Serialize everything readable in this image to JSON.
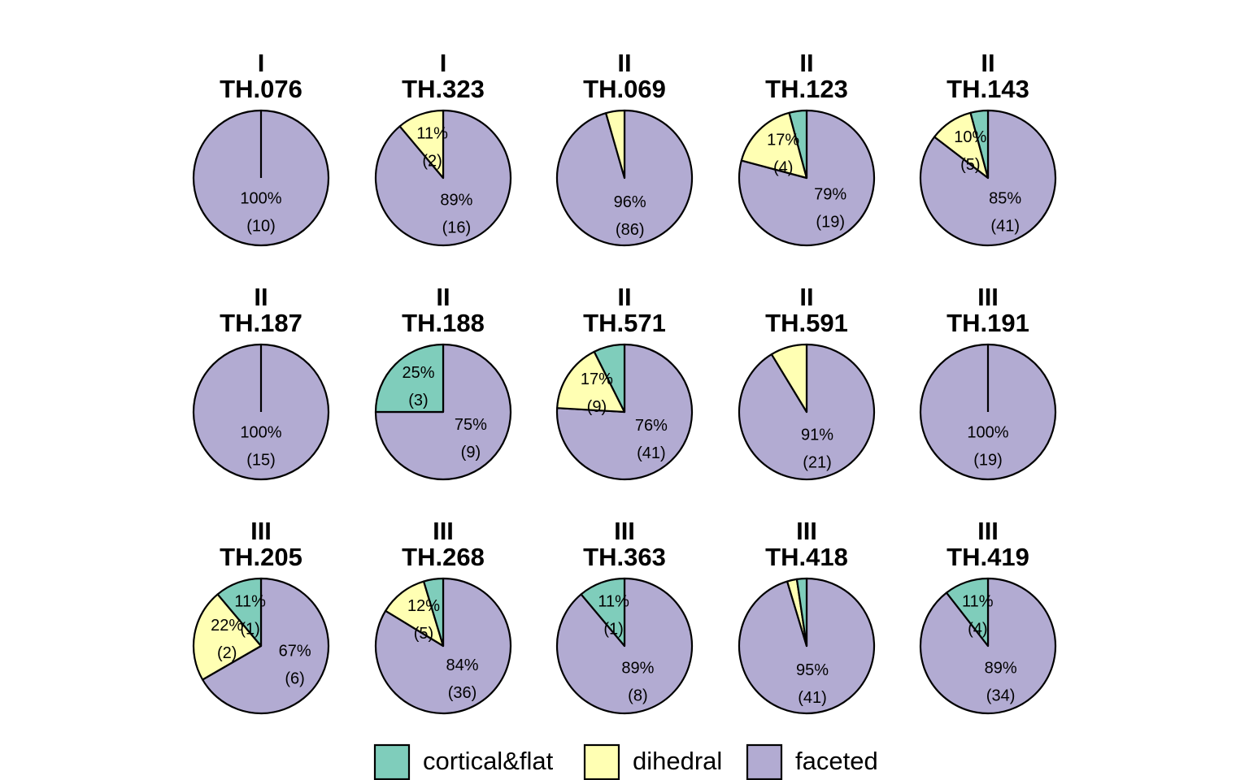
{
  "chart_data": {
    "type": "pie",
    "layout": "small-multiples-grid",
    "grid": false,
    "legend_placement": "bottom",
    "categories": [
      "cortical&flat",
      "dihedral",
      "faceted"
    ],
    "colors": {
      "cortical&flat": "#7FCDBB",
      "dihedral": "#FFFFB3",
      "faceted": "#B2ABD2"
    },
    "outline_color": "#000000",
    "pies": [
      {
        "group": "I",
        "id": "TH.076",
        "counts": [
          0,
          0,
          10
        ],
        "labels": [
          null,
          null,
          {
            "pct": "100%",
            "n": "(10)"
          }
        ]
      },
      {
        "group": "I",
        "id": "TH.323",
        "counts": [
          0,
          2,
          16
        ],
        "labels": [
          null,
          {
            "pct": "11%",
            "n": "(2)"
          },
          {
            "pct": "89%",
            "n": "(16)"
          }
        ]
      },
      {
        "group": "II",
        "id": "TH.069",
        "counts": [
          0,
          4,
          86
        ],
        "labels": [
          null,
          null,
          {
            "pct": "96%",
            "n": "(86)"
          }
        ]
      },
      {
        "group": "II",
        "id": "TH.123",
        "counts": [
          1,
          4,
          19
        ],
        "labels": [
          null,
          {
            "pct": "17%",
            "n": "(4)"
          },
          {
            "pct": "79%",
            "n": "(19)"
          }
        ]
      },
      {
        "group": "II",
        "id": "TH.143",
        "counts": [
          2,
          5,
          41
        ],
        "labels": [
          null,
          {
            "pct": "10%",
            "n": "(5)"
          },
          {
            "pct": "85%",
            "n": "(41)"
          }
        ]
      },
      {
        "group": "II",
        "id": "TH.187",
        "counts": [
          0,
          0,
          15
        ],
        "labels": [
          null,
          null,
          {
            "pct": "100%",
            "n": "(15)"
          }
        ]
      },
      {
        "group": "II",
        "id": "TH.188",
        "counts": [
          3,
          0,
          9
        ],
        "labels": [
          {
            "pct": "25%",
            "n": "(3)"
          },
          null,
          {
            "pct": "75%",
            "n": "(9)"
          }
        ]
      },
      {
        "group": "II",
        "id": "TH.571",
        "counts": [
          4,
          9,
          41
        ],
        "labels": [
          null,
          {
            "pct": "17%",
            "n": "(9)"
          },
          {
            "pct": "76%",
            "n": "(41)"
          }
        ]
      },
      {
        "group": "II",
        "id": "TH.591",
        "counts": [
          0,
          2,
          21
        ],
        "labels": [
          null,
          null,
          {
            "pct": "91%",
            "n": "(21)"
          }
        ]
      },
      {
        "group": "III",
        "id": "TH.191",
        "counts": [
          0,
          0,
          19
        ],
        "labels": [
          null,
          null,
          {
            "pct": "100%",
            "n": "(19)"
          }
        ]
      },
      {
        "group": "III",
        "id": "TH.205",
        "counts": [
          1,
          2,
          6
        ],
        "labels": [
          {
            "pct": "11%",
            "n": "(1)"
          },
          {
            "pct": "22%",
            "n": "(2)"
          },
          {
            "pct": "67%",
            "n": "(6)"
          }
        ]
      },
      {
        "group": "III",
        "id": "TH.268",
        "counts": [
          2,
          5,
          36
        ],
        "labels": [
          null,
          {
            "pct": "12%",
            "n": "(5)"
          },
          {
            "pct": "84%",
            "n": "(36)"
          }
        ]
      },
      {
        "group": "III",
        "id": "TH.363",
        "counts": [
          1,
          0,
          8
        ],
        "labels": [
          {
            "pct": "11%",
            "n": "(1)"
          },
          null,
          {
            "pct": "89%",
            "n": "(8)"
          }
        ]
      },
      {
        "group": "III",
        "id": "TH.418",
        "counts": [
          1,
          1,
          41
        ],
        "labels": [
          null,
          null,
          {
            "pct": "95%",
            "n": "(41)"
          }
        ]
      },
      {
        "group": "III",
        "id": "TH.419",
        "counts": [
          4,
          0,
          34
        ],
        "labels": [
          {
            "pct": "11%",
            "n": "(4)"
          },
          null,
          {
            "pct": "89%",
            "n": "(34)"
          }
        ]
      }
    ]
  }
}
